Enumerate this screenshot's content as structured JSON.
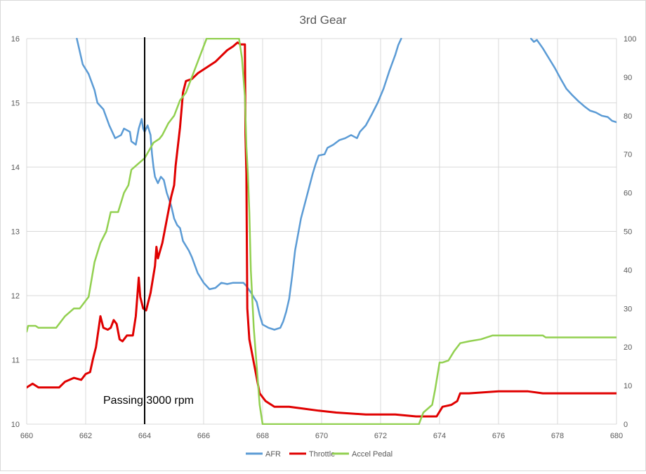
{
  "chart_data": {
    "type": "line",
    "title": "3rd Gear",
    "xlim": [
      660,
      680
    ],
    "x_ticks": [
      "660",
      "662",
      "664",
      "666",
      "668",
      "670",
      "672",
      "674",
      "676",
      "678",
      "680"
    ],
    "ylim_left": [
      10,
      16
    ],
    "y_left_ticks": [
      "10",
      "11",
      "12",
      "13",
      "14",
      "15",
      "16"
    ],
    "ylim_right": [
      0,
      100
    ],
    "y_right_ticks": [
      "0",
      "10",
      "20",
      "30",
      "40",
      "50",
      "60",
      "70",
      "80",
      "90",
      "100"
    ],
    "grid": true,
    "legend_position": "bottom",
    "annotation": {
      "text": "Passing 3000 rpm",
      "x": 664
    },
    "series": [
      {
        "name": "AFR",
        "axis": "left",
        "color": "#5b9bd5",
        "points": [
          [
            661.7,
            16.0
          ],
          [
            661.8,
            15.8
          ],
          [
            661.9,
            15.6
          ],
          [
            662.1,
            15.45
          ],
          [
            662.3,
            15.2
          ],
          [
            662.4,
            15.0
          ],
          [
            662.6,
            14.9
          ],
          [
            662.8,
            14.65
          ],
          [
            663.0,
            14.45
          ],
          [
            663.2,
            14.5
          ],
          [
            663.3,
            14.6
          ],
          [
            663.5,
            14.55
          ],
          [
            663.55,
            14.4
          ],
          [
            663.7,
            14.35
          ],
          [
            663.8,
            14.6
          ],
          [
            663.9,
            14.75
          ],
          [
            663.95,
            14.6
          ],
          [
            664.0,
            14.55
          ],
          [
            664.1,
            14.65
          ],
          [
            664.2,
            14.5
          ],
          [
            664.25,
            14.2
          ],
          [
            664.3,
            14.0
          ],
          [
            664.35,
            13.85
          ],
          [
            664.45,
            13.75
          ],
          [
            664.55,
            13.85
          ],
          [
            664.65,
            13.8
          ],
          [
            664.75,
            13.6
          ],
          [
            664.9,
            13.4
          ],
          [
            665.0,
            13.2
          ],
          [
            665.1,
            13.1
          ],
          [
            665.2,
            13.05
          ],
          [
            665.3,
            12.85
          ],
          [
            665.5,
            12.7
          ],
          [
            665.6,
            12.6
          ],
          [
            665.8,
            12.35
          ],
          [
            666.0,
            12.2
          ],
          [
            666.2,
            12.1
          ],
          [
            666.4,
            12.12
          ],
          [
            666.6,
            12.2
          ],
          [
            666.8,
            12.18
          ],
          [
            667.0,
            12.2
          ],
          [
            667.2,
            12.2
          ],
          [
            667.35,
            12.2
          ],
          [
            667.45,
            12.15
          ],
          [
            667.6,
            12.05
          ],
          [
            667.8,
            11.9
          ],
          [
            667.9,
            11.7
          ],
          [
            668.0,
            11.55
          ],
          [
            668.2,
            11.5
          ],
          [
            668.4,
            11.47
          ],
          [
            668.6,
            11.5
          ],
          [
            668.7,
            11.6
          ],
          [
            668.8,
            11.75
          ],
          [
            668.9,
            11.95
          ],
          [
            669.0,
            12.3
          ],
          [
            669.1,
            12.7
          ],
          [
            669.3,
            13.2
          ],
          [
            669.5,
            13.55
          ],
          [
            669.7,
            13.9
          ],
          [
            669.8,
            14.05
          ],
          [
            669.9,
            14.18
          ],
          [
            670.1,
            14.2
          ],
          [
            670.2,
            14.3
          ],
          [
            670.4,
            14.35
          ],
          [
            670.6,
            14.42
          ],
          [
            670.8,
            14.45
          ],
          [
            671.0,
            14.5
          ],
          [
            671.2,
            14.45
          ],
          [
            671.3,
            14.55
          ],
          [
            671.5,
            14.65
          ],
          [
            671.7,
            14.82
          ],
          [
            671.9,
            15.0
          ],
          [
            672.1,
            15.22
          ],
          [
            672.3,
            15.5
          ],
          [
            672.5,
            15.75
          ],
          [
            672.6,
            15.9
          ],
          [
            672.7,
            16.0
          ],
          null,
          [
            677.1,
            16.0
          ],
          [
            677.2,
            15.95
          ],
          [
            677.3,
            15.98
          ],
          [
            677.5,
            15.85
          ],
          [
            677.7,
            15.7
          ],
          [
            677.9,
            15.55
          ],
          [
            678.1,
            15.38
          ],
          [
            678.3,
            15.22
          ],
          [
            678.5,
            15.12
          ],
          [
            678.7,
            15.03
          ],
          [
            678.9,
            14.95
          ],
          [
            679.1,
            14.88
          ],
          [
            679.3,
            14.85
          ],
          [
            679.5,
            14.8
          ],
          [
            679.7,
            14.78
          ],
          [
            679.85,
            14.72
          ],
          [
            680.0,
            14.7
          ]
        ]
      },
      {
        "name": "Throttle",
        "axis": "right",
        "color": "#e00000",
        "points": [
          [
            660.0,
            9.5
          ],
          [
            660.2,
            10.5
          ],
          [
            660.4,
            9.5
          ],
          [
            661.1,
            9.5
          ],
          [
            661.3,
            11
          ],
          [
            661.6,
            12
          ],
          [
            661.85,
            11.5
          ],
          [
            662.0,
            13
          ],
          [
            662.15,
            13.5
          ],
          [
            662.25,
            17
          ],
          [
            662.35,
            20
          ],
          [
            662.5,
            28
          ],
          [
            662.6,
            25
          ],
          [
            662.75,
            24.5
          ],
          [
            662.85,
            25
          ],
          [
            662.95,
            27
          ],
          [
            663.05,
            26
          ],
          [
            663.15,
            22
          ],
          [
            663.25,
            21.5
          ],
          [
            663.4,
            23
          ],
          [
            663.6,
            23
          ],
          [
            663.7,
            28
          ],
          [
            663.8,
            38
          ],
          [
            663.85,
            33
          ],
          [
            663.95,
            30
          ],
          [
            664.05,
            29.5
          ],
          [
            664.2,
            34
          ],
          [
            664.35,
            41
          ],
          [
            664.4,
            46
          ],
          [
            664.45,
            43
          ],
          [
            664.6,
            47
          ],
          [
            664.75,
            53
          ],
          [
            664.9,
            59
          ],
          [
            665.0,
            62
          ],
          [
            665.05,
            67
          ],
          [
            665.2,
            77
          ],
          [
            665.3,
            86
          ],
          [
            665.4,
            89
          ],
          [
            665.6,
            89.5
          ],
          [
            665.8,
            91
          ],
          [
            666.0,
            92
          ],
          [
            666.2,
            93
          ],
          [
            666.4,
            94
          ],
          [
            666.6,
            95.5
          ],
          [
            666.8,
            97
          ],
          [
            667.0,
            98
          ],
          [
            667.15,
            99
          ],
          [
            667.25,
            98.5
          ],
          [
            667.4,
            98.5
          ],
          [
            667.42,
            75
          ],
          [
            667.45,
            65
          ],
          [
            667.48,
            30
          ],
          [
            667.55,
            22
          ],
          [
            667.65,
            18
          ],
          [
            667.75,
            14
          ],
          [
            667.9,
            8
          ],
          [
            668.1,
            6
          ],
          [
            668.4,
            4.5
          ],
          [
            668.9,
            4.5
          ],
          [
            669.4,
            4
          ],
          [
            669.9,
            3.5
          ],
          [
            670.5,
            3
          ],
          [
            671.5,
            2.5
          ],
          [
            672.5,
            2.5
          ],
          [
            673.2,
            2
          ],
          [
            673.9,
            2
          ],
          [
            674.1,
            4.5
          ],
          [
            674.4,
            5
          ],
          [
            674.6,
            6
          ],
          [
            674.7,
            8
          ],
          [
            675.0,
            8
          ],
          [
            676.0,
            8.5
          ],
          [
            677.0,
            8.5
          ],
          [
            677.5,
            8
          ],
          [
            678.5,
            8
          ],
          [
            680.0,
            8
          ]
        ]
      },
      {
        "name": "Accel Pedal",
        "axis": "right",
        "color": "#92d050",
        "points": [
          [
            660.0,
            24
          ],
          [
            660.05,
            25.5
          ],
          [
            660.3,
            25.5
          ],
          [
            660.4,
            25
          ],
          [
            661.0,
            25
          ],
          [
            661.1,
            26
          ],
          [
            661.3,
            28
          ],
          [
            661.6,
            30
          ],
          [
            661.8,
            30
          ],
          [
            662.1,
            33
          ],
          [
            662.3,
            42
          ],
          [
            662.5,
            47
          ],
          [
            662.7,
            50
          ],
          [
            662.85,
            55
          ],
          [
            663.1,
            55
          ],
          [
            663.3,
            60
          ],
          [
            663.45,
            62
          ],
          [
            663.55,
            66
          ],
          [
            663.7,
            67
          ],
          [
            664.0,
            69
          ],
          [
            664.15,
            71
          ],
          [
            664.3,
            73
          ],
          [
            664.5,
            74
          ],
          [
            664.6,
            75
          ],
          [
            664.8,
            78
          ],
          [
            665.0,
            80
          ],
          [
            665.2,
            84
          ],
          [
            665.4,
            86
          ],
          [
            665.6,
            90
          ],
          [
            665.8,
            94
          ],
          [
            666.0,
            98
          ],
          [
            666.1,
            100
          ],
          [
            667.2,
            100
          ],
          [
            667.3,
            95
          ],
          [
            667.4,
            85
          ],
          [
            667.45,
            72
          ],
          [
            667.5,
            65
          ],
          [
            667.55,
            55
          ],
          [
            667.6,
            40
          ],
          [
            667.7,
            25
          ],
          [
            667.8,
            15
          ],
          [
            667.9,
            5
          ],
          [
            668.0,
            0
          ],
          [
            673.3,
            0
          ],
          [
            673.45,
            3
          ],
          [
            673.6,
            4
          ],
          [
            673.75,
            5
          ],
          [
            673.85,
            9
          ],
          [
            674.0,
            16
          ],
          [
            674.1,
            16
          ],
          [
            674.3,
            16.5
          ],
          [
            674.5,
            19
          ],
          [
            674.7,
            21
          ],
          [
            675.0,
            21.5
          ],
          [
            675.4,
            22
          ],
          [
            675.8,
            23
          ],
          [
            676.5,
            23
          ],
          [
            677.5,
            23
          ],
          [
            677.6,
            22.5
          ],
          [
            678.5,
            22.5
          ],
          [
            680.0,
            22.5
          ]
        ]
      }
    ]
  }
}
